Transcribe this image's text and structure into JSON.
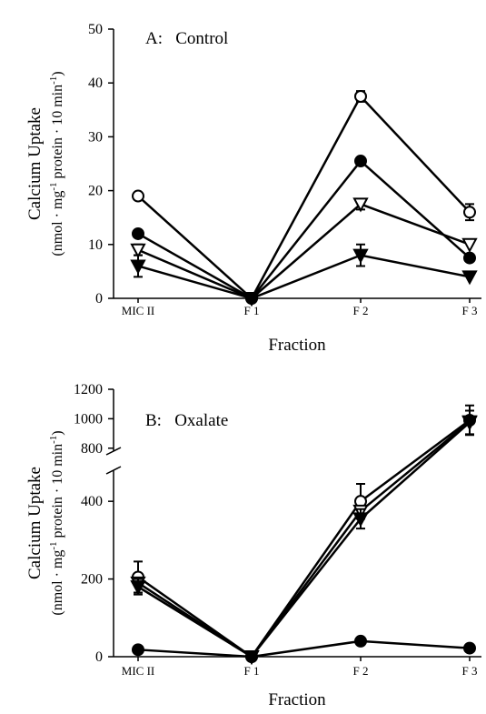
{
  "chart_data": [
    {
      "type": "line",
      "title": "A:   Control",
      "categories": [
        "MIC II",
        "F 1",
        "F 2",
        "F 3"
      ],
      "xlabel": "Fraction",
      "ylabel": "Calcium Uptake",
      "ylabel_units": [
        "(nmol · mg",
        "-1",
        " protein · 10 min",
        "-1",
        ")"
      ],
      "ylim": [
        0,
        50
      ],
      "yticks": [
        0,
        10,
        20,
        30,
        40,
        50
      ],
      "series": [
        {
          "marker": "open-circle",
          "color": "#000000",
          "values": [
            19,
            0,
            37.5,
            16
          ],
          "errors": [
            null,
            null,
            1,
            1.5
          ]
        },
        {
          "marker": "filled-circle",
          "color": "#000000",
          "values": [
            12,
            0,
            25.5,
            7.5
          ],
          "errors": [
            null,
            null,
            null,
            null
          ]
        },
        {
          "marker": "open-triangle",
          "color": "#000000",
          "values": [
            9,
            0,
            17.5,
            10
          ],
          "errors": [
            1,
            null,
            1,
            null
          ]
        },
        {
          "marker": "filled-triangle",
          "color": "#000000",
          "values": [
            6,
            0,
            8,
            4
          ],
          "errors": [
            2,
            null,
            2,
            null
          ]
        }
      ]
    },
    {
      "type": "line",
      "title": "B:   Oxalate",
      "categories": [
        "MIC II",
        "F 1",
        "F 2",
        "F 3"
      ],
      "xlabel": "Fraction",
      "ylabel": "Calcium Uptake",
      "ylabel_units": [
        "(nmol · mg",
        "-1",
        " protein · 10 min",
        "-1",
        ")"
      ],
      "ylim": [
        0,
        1200
      ],
      "axis_break": [
        480,
        780
      ],
      "yticks": [
        0,
        200,
        400,
        800,
        1000,
        1200
      ],
      "series": [
        {
          "marker": "open-circle",
          "color": "#000000",
          "values": [
            205,
            0,
            400,
            990
          ],
          "errors": [
            40,
            null,
            45,
            100
          ]
        },
        {
          "marker": "open-triangle",
          "color": "#000000",
          "values": [
            190,
            0,
            375,
            980
          ],
          "errors": [
            null,
            null,
            null,
            null
          ]
        },
        {
          "marker": "filled-triangle",
          "color": "#000000",
          "values": [
            180,
            0,
            355,
            975
          ],
          "errors": [
            20,
            null,
            25,
            80
          ]
        },
        {
          "marker": "filled-circle",
          "color": "#000000",
          "values": [
            18,
            0,
            40,
            22
          ],
          "errors": [
            null,
            null,
            null,
            null
          ]
        }
      ]
    }
  ]
}
